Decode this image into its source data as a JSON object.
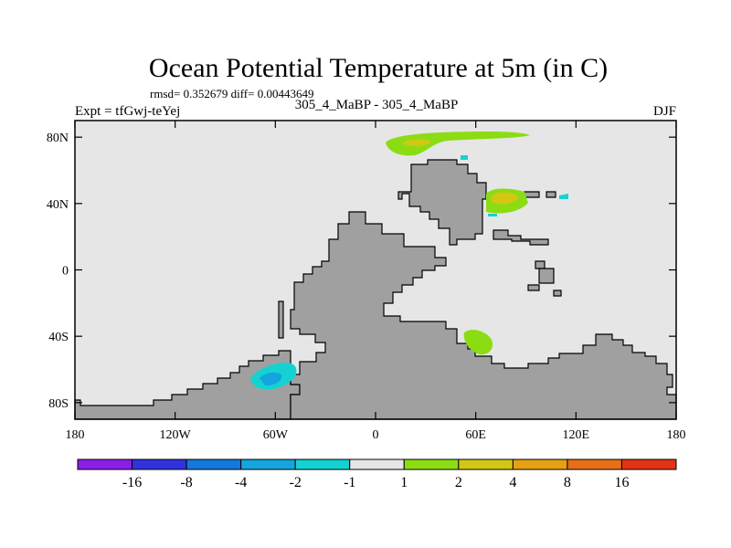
{
  "chart_data": {
    "type": "map-contour",
    "title": "Ocean Potential Temperature at 5m (in C)",
    "stats": "rmsd= 0.352679  diff= 0.00443649",
    "left_label": "Expt = tfGwj-teYej",
    "center_label": "305_4_MaBP - 305_4_MaBP",
    "right_label": "DJF",
    "x_ticks": [
      "180",
      "120W",
      "60W",
      "0",
      "60E",
      "120E",
      "180"
    ],
    "x_values": [
      -180,
      -120,
      -60,
      0,
      60,
      120,
      180
    ],
    "y_ticks": [
      "80N",
      "40N",
      "0",
      "40S",
      "80S"
    ],
    "y_values": [
      80,
      40,
      0,
      -40,
      -80
    ],
    "xlim": [
      -180,
      180
    ],
    "ylim": [
      -90,
      90
    ],
    "colorbar": {
      "labels": [
        "-16",
        "-8",
        "-4",
        "-2",
        "-1",
        "1",
        "2",
        "4",
        "8",
        "16"
      ],
      "colors": [
        "#8a1ee6",
        "#3232dc",
        "#1478dc",
        "#14a5dc",
        "#14d2d2",
        "#e6e6e6",
        "#8cdc14",
        "#d2c814",
        "#e6a014",
        "#e66e14",
        "#e63214"
      ]
    },
    "colors": {
      "ocean": "#e6e6e6",
      "land": "#a0a0a0"
    }
  }
}
